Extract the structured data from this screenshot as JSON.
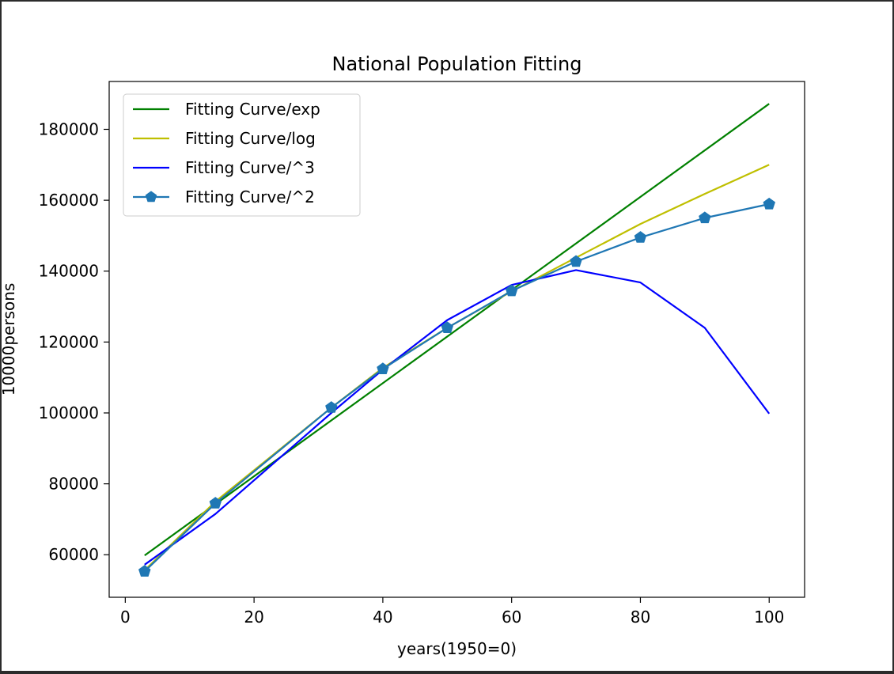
{
  "chart_data": {
    "type": "line",
    "title": "National Population Fitting",
    "xlabel": "years(1950=0)",
    "ylabel": "10000persons",
    "xlim": [
      -2.5,
      105.5
    ],
    "ylim": [
      48000,
      193500
    ],
    "xticks": [
      0,
      20,
      40,
      60,
      80,
      100
    ],
    "yticks": [
      60000,
      80000,
      100000,
      120000,
      140000,
      160000,
      180000
    ],
    "grid": false,
    "legend_position": "top-left",
    "series": [
      {
        "name": "Fitting Curve/exp",
        "color": "#008000",
        "marker": "none",
        "x": [
          3,
          100
        ],
        "y": [
          59800,
          187200
        ]
      },
      {
        "name": "Fitting Curve/log",
        "color": "#bfbf00",
        "marker": "none",
        "x": [
          3,
          14,
          32,
          40,
          50,
          60,
          70,
          80,
          90,
          100
        ],
        "y": [
          55600,
          75000,
          101500,
          112700,
          124000,
          134300,
          143800,
          153300,
          161800,
          170000
        ]
      },
      {
        "name": "Fitting Curve/^3",
        "color": "#0000ff",
        "marker": "none",
        "x": [
          3,
          14,
          32,
          40,
          50,
          60,
          70,
          80,
          90,
          100
        ],
        "y": [
          57200,
          71500,
          100000,
          112200,
          126200,
          136100,
          140300,
          136800,
          124000,
          99800
        ]
      },
      {
        "name": "Fitting Curve/^2",
        "color": "#1f77b4",
        "marker": "pentagon",
        "x": [
          3,
          14,
          32,
          40,
          50,
          60,
          70,
          80,
          90,
          100
        ],
        "y": [
          55300,
          74500,
          101500,
          112400,
          124000,
          134400,
          142700,
          149500,
          155000,
          158900
        ]
      }
    ]
  }
}
